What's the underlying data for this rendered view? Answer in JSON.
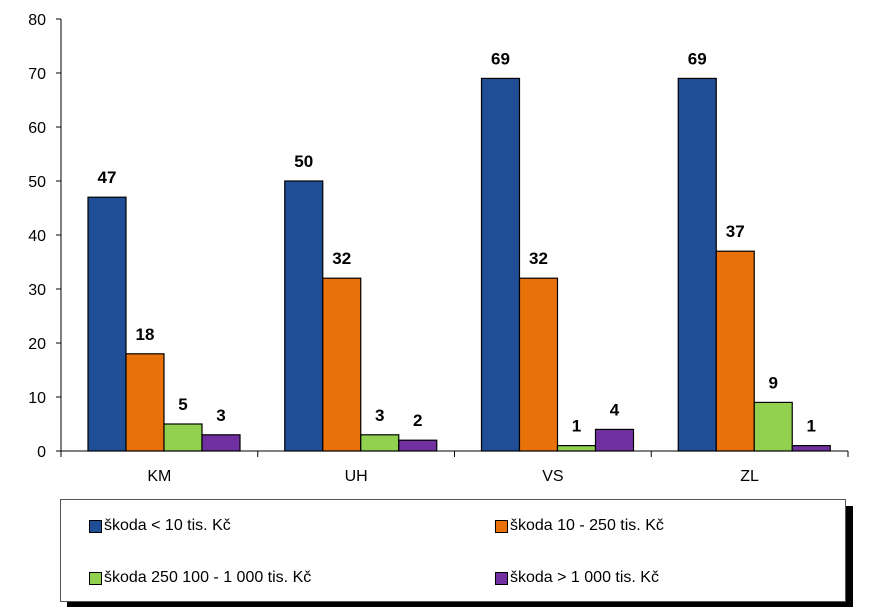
{
  "chart_data": {
    "type": "bar",
    "categories": [
      "KM",
      "UH",
      "VS",
      "ZL"
    ],
    "series": [
      {
        "name": "škoda < 10 tis. Kč",
        "color": "#1F4E97",
        "values": [
          47,
          50,
          69,
          69
        ]
      },
      {
        "name": "škoda 10 - 250 tis. Kč",
        "color": "#E8710A",
        "values": [
          18,
          32,
          32,
          37
        ]
      },
      {
        "name": "škoda 250 100 - 1 000 tis. Kč",
        "color": "#92D050",
        "values": [
          5,
          3,
          1,
          9
        ]
      },
      {
        "name": "škoda > 1 000 tis. Kč",
        "color": "#7030A0",
        "values": [
          3,
          2,
          4,
          1
        ]
      }
    ],
    "ylim": [
      0,
      80
    ],
    "yticks": [
      "0",
      "10",
      "20",
      "30",
      "40",
      "50",
      "60",
      "70",
      "80"
    ],
    "grid": false,
    "data_labels": true,
    "legend_position": "bottom"
  }
}
